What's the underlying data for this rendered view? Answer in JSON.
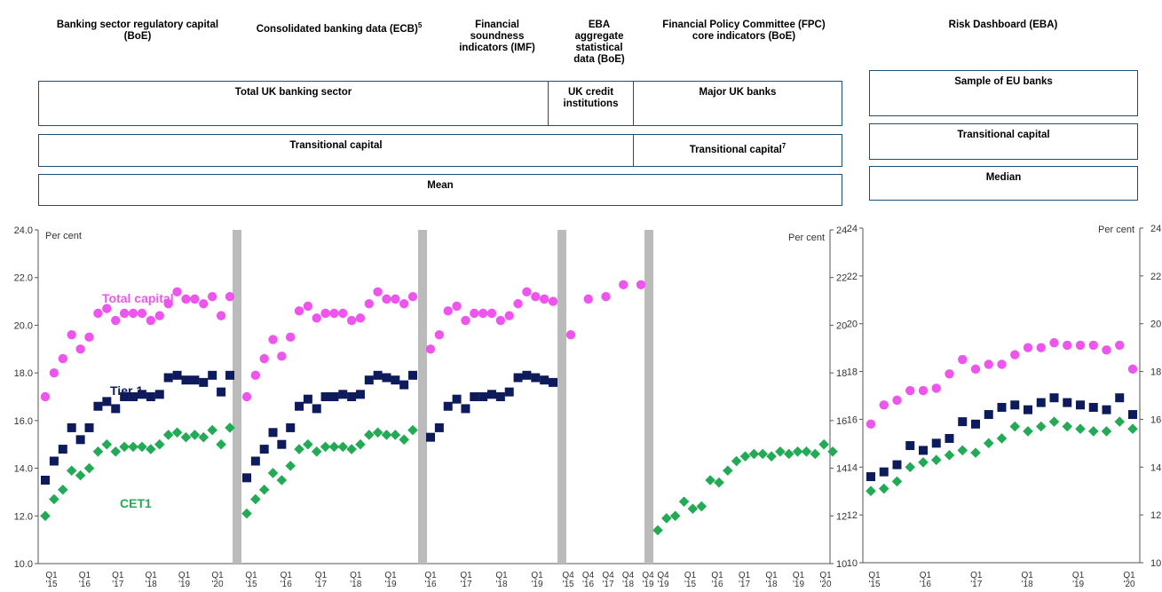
{
  "headers": {
    "boe_capital": "Banking sector regulatory capital (BoE)",
    "ecb": "Consolidated banking data (ECB)",
    "ecb_sup": "5",
    "imf": "Financial soundness indicators (IMF)",
    "eba_agg": "EBA aggregate statistical data (BoE)",
    "fpc": "Financial Policy Committee (FPC) core indicators (BoE)",
    "eba_dash": "Risk Dashboard  (EBA)"
  },
  "boxes": {
    "total_uk": "Total UK banking sector",
    "uk_credit": "UK credit institutions",
    "major_uk": "Major UK banks",
    "sample_eu": "Sample of EU  banks",
    "transitional": "Transitional capital",
    "transitional_fpc": "Transitional capital",
    "transitional_fpc_sup": "7",
    "transitional_eu": "Transitional capital",
    "mean": "Mean",
    "median": "Median"
  },
  "colors": {
    "total_capital": "#ee55ee",
    "tier1": "#0d1a5c",
    "cet1": "#22aa55",
    "separator": "#bbbbbb",
    "box_border": "#1f4e79"
  },
  "chart_data": [
    {
      "type": "scatter",
      "id": "uk",
      "ylabel": "Per cent",
      "ylabel_right": "Per cent",
      "ylim": [
        10,
        24
      ],
      "yticks": [
        "10.0",
        "12.0",
        "14.0",
        "16.0",
        "18.0",
        "20.0",
        "22.0",
        "24.0"
      ],
      "yticks_right": [
        "10",
        "12",
        "14",
        "16",
        "18",
        "20",
        "22",
        "24"
      ],
      "grid": false,
      "annotations": [
        "Total capital",
        "Tier 1",
        "CET1"
      ],
      "panels": [
        {
          "source": "BoE",
          "xticks": [
            [
              "Q1",
              "'15"
            ],
            [
              "Q1",
              "'16"
            ],
            [
              "Q1",
              "'17"
            ],
            [
              "Q1",
              "'18"
            ],
            [
              "Q1",
              "'19"
            ],
            [
              "Q1",
              "'20"
            ]
          ],
          "series": [
            {
              "name": "Total capital",
              "marker": "circle",
              "values": [
                17.0,
                18.0,
                18.6,
                19.6,
                19.0,
                19.5,
                20.5,
                20.7,
                20.2,
                20.5,
                20.5,
                20.5,
                20.2,
                20.4,
                20.9,
                21.4,
                21.1,
                21.1,
                20.9,
                21.2,
                20.4,
                21.2
              ]
            },
            {
              "name": "Tier 1",
              "marker": "square",
              "values": [
                13.5,
                14.3,
                14.8,
                15.7,
                15.2,
                15.7,
                16.6,
                16.8,
                16.5,
                17.0,
                17.0,
                17.1,
                17.0,
                17.1,
                17.8,
                17.9,
                17.7,
                17.7,
                17.6,
                17.9,
                17.2,
                17.9
              ]
            },
            {
              "name": "CET1",
              "marker": "diamond",
              "values": [
                12.0,
                12.7,
                13.1,
                13.9,
                13.7,
                14.0,
                14.7,
                15.0,
                14.7,
                14.9,
                14.9,
                14.9,
                14.8,
                15.0,
                15.4,
                15.5,
                15.3,
                15.4,
                15.3,
                15.6,
                15.0,
                15.7
              ]
            }
          ]
        },
        {
          "source": "ECB",
          "xticks": [
            [
              "Q1",
              "'15"
            ],
            [
              "Q1",
              "'16"
            ],
            [
              "Q1",
              "'17"
            ],
            [
              "Q1",
              "'18"
            ],
            [
              "Q1",
              "'19"
            ]
          ],
          "series": [
            {
              "name": "Total capital",
              "marker": "circle",
              "values": [
                17.0,
                17.9,
                18.6,
                19.4,
                18.7,
                19.5,
                20.6,
                20.8,
                20.3,
                20.5,
                20.5,
                20.5,
                20.2,
                20.3,
                20.9,
                21.4,
                21.1,
                21.1,
                20.9,
                21.2
              ]
            },
            {
              "name": "Tier 1",
              "marker": "square",
              "values": [
                13.6,
                14.3,
                14.8,
                15.5,
                15.0,
                15.7,
                16.6,
                16.9,
                16.5,
                17.0,
                17.0,
                17.1,
                17.0,
                17.1,
                17.7,
                17.9,
                17.8,
                17.7,
                17.5,
                17.9
              ]
            },
            {
              "name": "CET1",
              "marker": "diamond",
              "values": [
                12.1,
                12.7,
                13.1,
                13.8,
                13.5,
                14.1,
                14.8,
                15.0,
                14.7,
                14.9,
                14.9,
                14.9,
                14.8,
                15.0,
                15.4,
                15.5,
                15.4,
                15.4,
                15.2,
                15.6
              ]
            }
          ]
        },
        {
          "source": "IMF",
          "xticks": [
            [
              "Q1",
              "'16"
            ],
            [
              "Q1",
              "'17"
            ],
            [
              "Q1",
              "'18"
            ],
            [
              "Q1",
              "'19"
            ]
          ],
          "series": [
            {
              "name": "Total capital",
              "marker": "circle",
              "values": [
                19.0,
                19.6,
                20.6,
                20.8,
                20.2,
                20.5,
                20.5,
                20.5,
                20.2,
                20.4,
                20.9,
                21.4,
                21.2,
                21.1,
                21.0
              ]
            },
            {
              "name": "Tier 1",
              "marker": "square",
              "values": [
                15.3,
                15.7,
                16.6,
                16.9,
                16.5,
                17.0,
                17.0,
                17.1,
                17.0,
                17.2,
                17.8,
                17.9,
                17.8,
                17.7,
                17.6
              ]
            }
          ]
        },
        {
          "source": "EBA aggregate",
          "xticks": [
            [
              "Q4",
              "'15"
            ],
            [
              "Q4",
              "'16"
            ],
            [
              "Q4",
              "'17"
            ],
            [
              "Q4",
              "'18"
            ],
            [
              "Q4",
              "'19"
            ]
          ],
          "series": [
            {
              "name": "Total capital",
              "marker": "circle",
              "values": [
                19.6,
                21.1,
                21.2,
                21.7,
                21.7
              ]
            }
          ]
        },
        {
          "source": "FPC",
          "xticks": [
            [
              "Q4",
              "'19"
            ],
            [
              "Q1",
              "'15"
            ],
            [
              "Q1",
              "'16"
            ],
            [
              "Q1",
              "'17"
            ],
            [
              "Q1",
              "'18"
            ],
            [
              "Q1",
              "'19"
            ],
            [
              "Q1",
              "'20"
            ]
          ],
          "series": [
            {
              "name": "CET1",
              "marker": "diamond",
              "values": [
                11.4,
                11.9,
                12.0,
                12.6,
                12.3,
                12.4,
                13.5,
                13.4,
                13.9,
                14.3,
                14.5,
                14.6,
                14.6,
                14.5,
                14.7,
                14.6,
                14.7,
                14.7,
                14.6,
                15.0,
                14.7
              ]
            }
          ]
        }
      ]
    },
    {
      "type": "scatter",
      "id": "eu",
      "ylabel": "Per cent",
      "ylim": [
        10,
        24
      ],
      "yticks_left": [
        "10",
        "12",
        "14",
        "16",
        "18",
        "20",
        "22",
        "24"
      ],
      "yticks_right": [
        "10",
        "12",
        "14",
        "16",
        "18",
        "20",
        "22",
        "24"
      ],
      "grid": false,
      "xticks": [
        [
          "Q1",
          "'15"
        ],
        [
          "Q1",
          "'16"
        ],
        [
          "Q1",
          "'17"
        ],
        [
          "Q1",
          "'18"
        ],
        [
          "Q1",
          "'19"
        ],
        [
          "Q1",
          "'20"
        ]
      ],
      "series": [
        {
          "name": "Total capital",
          "marker": "circle",
          "values": [
            15.8,
            16.6,
            16.8,
            17.2,
            17.2,
            17.3,
            17.9,
            18.5,
            18.1,
            18.3,
            18.3,
            18.7,
            19.0,
            19.0,
            19.2,
            19.1,
            19.1,
            19.1,
            18.9,
            19.1,
            18.1
          ]
        },
        {
          "name": "Tier 1",
          "marker": "square",
          "values": [
            13.6,
            13.8,
            14.1,
            14.9,
            14.7,
            15.0,
            15.2,
            15.9,
            15.8,
            16.2,
            16.5,
            16.6,
            16.4,
            16.7,
            16.9,
            16.7,
            16.6,
            16.5,
            16.4,
            16.9,
            16.2
          ]
        },
        {
          "name": "CET1",
          "marker": "diamond",
          "values": [
            13.0,
            13.1,
            13.4,
            14.0,
            14.2,
            14.3,
            14.5,
            14.7,
            14.6,
            15.0,
            15.2,
            15.7,
            15.5,
            15.7,
            15.9,
            15.7,
            15.6,
            15.5,
            15.5,
            15.9,
            15.6
          ]
        }
      ]
    }
  ]
}
